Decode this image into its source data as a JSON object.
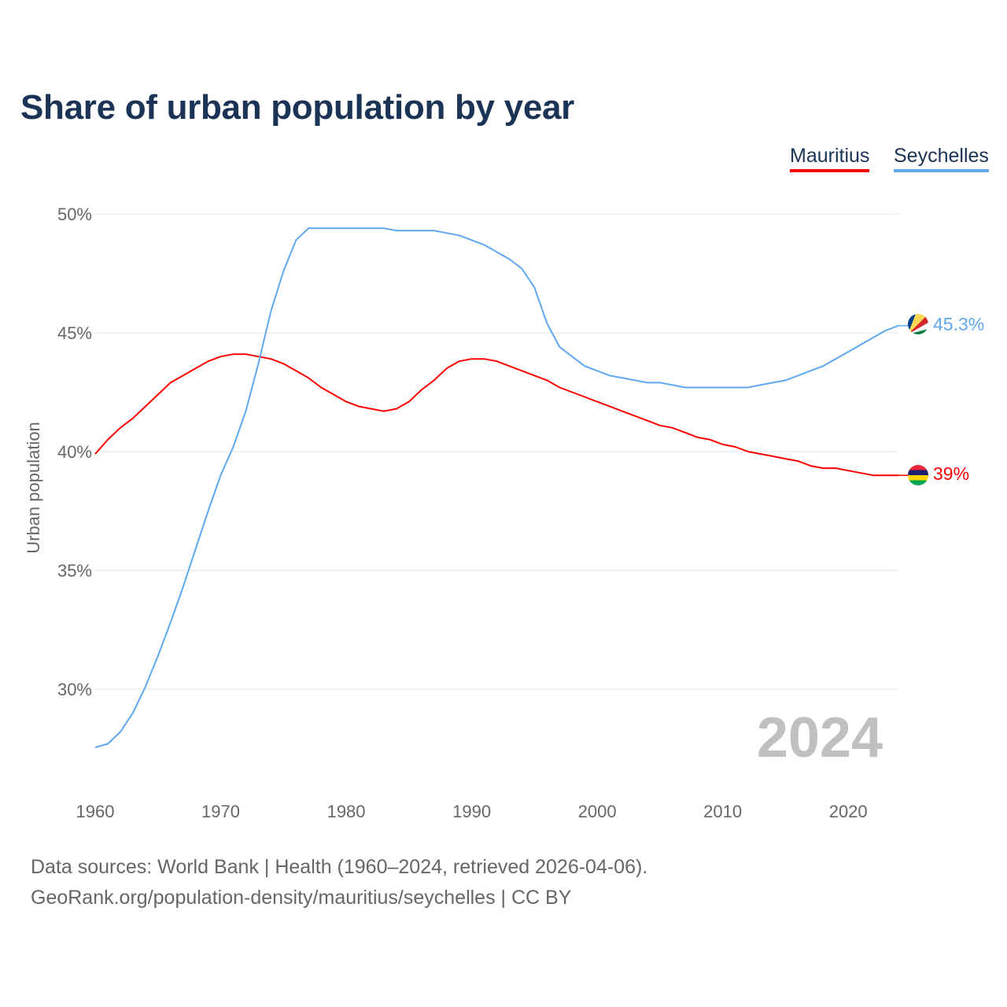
{
  "chart_data": {
    "type": "line",
    "title": "Share of urban population by year",
    "xlabel": "",
    "ylabel": "Urban population",
    "xlim": [
      1960,
      2024
    ],
    "ylim": [
      26,
      51
    ],
    "yticks": [
      30,
      35,
      40,
      45,
      50
    ],
    "ytick_labels": [
      "30%",
      "35%",
      "40%",
      "45%",
      "50%"
    ],
    "xticks": [
      1960,
      1970,
      1980,
      1990,
      2000,
      2010,
      2020
    ],
    "xtick_labels": [
      "1960",
      "1970",
      "1980",
      "1990",
      "2000",
      "2010",
      "2020"
    ],
    "grid": true,
    "legend_placement": "top-right",
    "year_label": "2024",
    "x": [
      1960,
      1961,
      1962,
      1963,
      1964,
      1965,
      1966,
      1967,
      1968,
      1969,
      1970,
      1971,
      1972,
      1973,
      1974,
      1975,
      1976,
      1977,
      1978,
      1979,
      1980,
      1981,
      1982,
      1983,
      1984,
      1985,
      1986,
      1987,
      1988,
      1989,
      1990,
      1991,
      1992,
      1993,
      1994,
      1995,
      1996,
      1997,
      1998,
      1999,
      2000,
      2001,
      2002,
      2003,
      2004,
      2005,
      2006,
      2007,
      2008,
      2009,
      2010,
      2011,
      2012,
      2013,
      2014,
      2015,
      2016,
      2017,
      2018,
      2019,
      2020,
      2021,
      2022,
      2023,
      2024
    ],
    "series": [
      {
        "name": "Mauritius",
        "color": "#ff0000",
        "end_label": "39%",
        "values": [
          39.9,
          40.5,
          41.0,
          41.4,
          41.9,
          42.4,
          42.9,
          43.2,
          43.5,
          43.8,
          44.0,
          44.1,
          44.1,
          44.0,
          43.9,
          43.7,
          43.4,
          43.1,
          42.7,
          42.4,
          42.1,
          41.9,
          41.8,
          41.7,
          41.8,
          42.1,
          42.6,
          43.0,
          43.5,
          43.8,
          43.9,
          43.9,
          43.8,
          43.6,
          43.4,
          43.2,
          43.0,
          42.7,
          42.5,
          42.3,
          42.1,
          41.9,
          41.7,
          41.5,
          41.3,
          41.1,
          41.0,
          40.8,
          40.6,
          40.5,
          40.3,
          40.2,
          40.0,
          39.9,
          39.8,
          39.7,
          39.6,
          39.4,
          39.3,
          39.3,
          39.2,
          39.1,
          39.0,
          39.0,
          39.0
        ]
      },
      {
        "name": "Seychelles",
        "color": "#5ea8ef",
        "end_label": "45.3%",
        "values": [
          27.55,
          27.7,
          28.2,
          29.0,
          30.1,
          31.4,
          32.8,
          34.3,
          35.9,
          37.5,
          39.0,
          40.2,
          41.7,
          43.7,
          45.9,
          47.6,
          48.9,
          49.4,
          49.4,
          49.4,
          49.4,
          49.4,
          49.4,
          49.4,
          49.3,
          49.3,
          49.3,
          49.3,
          49.2,
          49.1,
          48.9,
          48.7,
          48.4,
          48.1,
          47.7,
          46.9,
          45.4,
          44.4,
          44.0,
          43.6,
          43.4,
          43.2,
          43.1,
          43.0,
          42.9,
          42.9,
          42.8,
          42.7,
          42.7,
          42.7,
          42.7,
          42.7,
          42.7,
          42.8,
          42.9,
          43.0,
          43.2,
          43.4,
          43.6,
          43.9,
          44.2,
          44.5,
          44.8,
          45.1,
          45.3
        ]
      }
    ]
  },
  "sources": {
    "line1": "Data sources: World Bank | Health (1960–2024, retrieved 2026-04-06).",
    "line2": "GeoRank.org/population-density/mauritius/seychelles | CC BY"
  }
}
